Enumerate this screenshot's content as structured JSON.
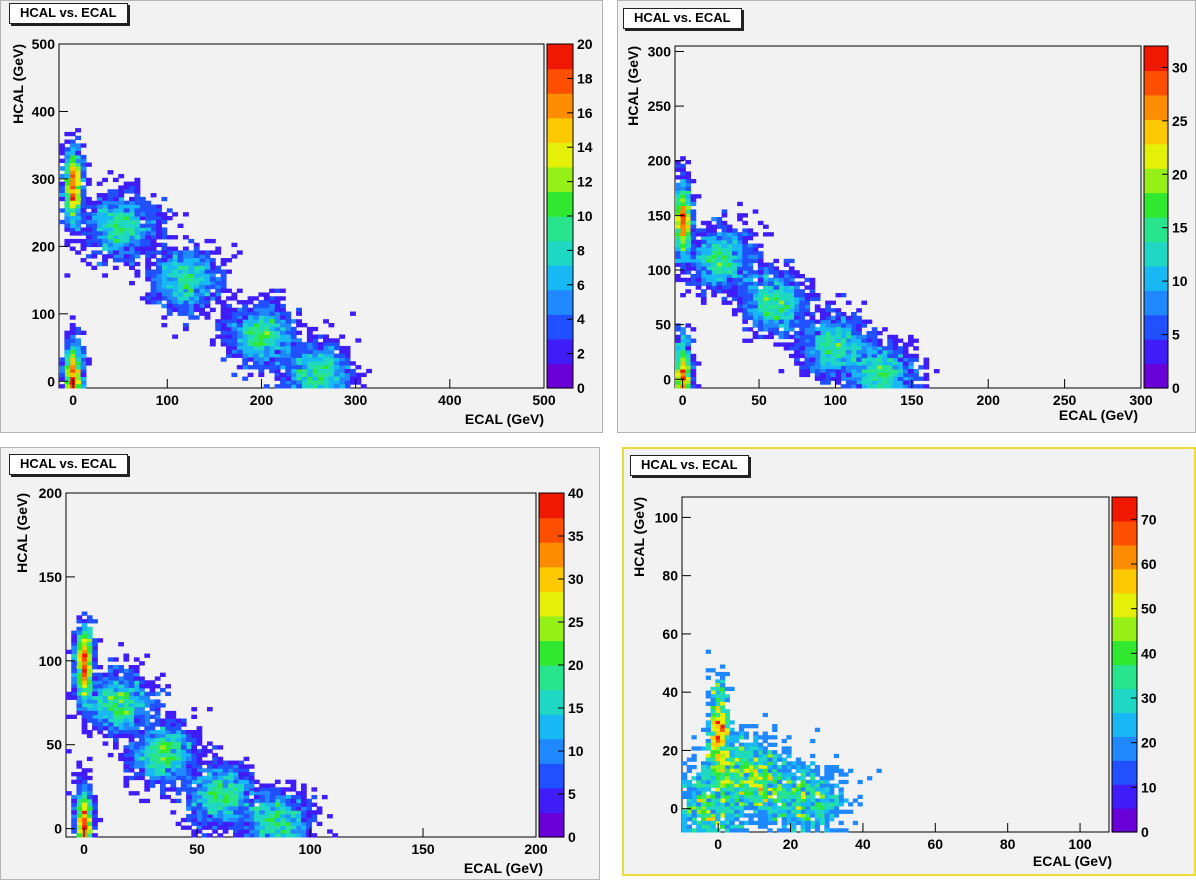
{
  "colors": {
    "pad_background": "#f2f2f2",
    "selected_pad_border": "#e8dc3c",
    "palette": [
      "#6a00d8",
      "#3f1cf8",
      "#2050ff",
      "#1f88ff",
      "#18b8f4",
      "#1fd8c4",
      "#28e48c",
      "#30e830",
      "#96f018",
      "#e4f008",
      "#fcc800",
      "#fc8c00",
      "#fc5000",
      "#f01800"
    ]
  },
  "chart_data": [
    {
      "type": "heatmap",
      "title": "HCAL vs. ECAL",
      "xlabel": "ECAL (GeV)",
      "ylabel": "HCAL (GeV)",
      "xlim": [
        -15,
        500
      ],
      "ylim": [
        -10,
        500
      ],
      "xticks": [
        "0",
        "100",
        "200",
        "300",
        "400",
        "500"
      ],
      "yticks": [
        "0",
        "100",
        "200",
        "300",
        "400",
        "500"
      ],
      "zlim": [
        0,
        20
      ],
      "zticks": [
        "0",
        "2",
        "4",
        "6",
        "8",
        "10",
        "12",
        "14",
        "16",
        "18",
        "20"
      ],
      "selected": false,
      "clusters": [
        {
          "x": 0,
          "y": 290,
          "z": 9
        },
        {
          "x": 0,
          "y": 5,
          "z": 5
        },
        {
          "x": 50,
          "y": 230,
          "z": 3
        },
        {
          "x": 120,
          "y": 150,
          "z": 2
        },
        {
          "x": 200,
          "y": 70,
          "z": 1
        },
        {
          "x": 260,
          "y": 10,
          "z": 1
        }
      ]
    },
    {
      "type": "heatmap",
      "title": "HCAL vs. ECAL",
      "xlabel": "ECAL (GeV)",
      "ylabel": "HCAL (GeV)",
      "xlim": [
        -5,
        300
      ],
      "ylim": [
        -8,
        305
      ],
      "xticks": [
        "0",
        "50",
        "100",
        "150",
        "200",
        "250",
        "300"
      ],
      "yticks": [
        "0",
        "50",
        "100",
        "150",
        "200",
        "250",
        "300"
      ],
      "zlim": [
        0,
        32
      ],
      "zticks": [
        "0",
        "5",
        "10",
        "15",
        "20",
        "25",
        "30"
      ],
      "selected": false,
      "clusters": [
        {
          "x": 0,
          "y": 145,
          "z": 12
        },
        {
          "x": 0,
          "y": 3,
          "z": 6
        },
        {
          "x": 25,
          "y": 110,
          "z": 5
        },
        {
          "x": 60,
          "y": 70,
          "z": 3
        },
        {
          "x": 100,
          "y": 30,
          "z": 2
        },
        {
          "x": 130,
          "y": 5,
          "z": 1
        }
      ]
    },
    {
      "type": "heatmap",
      "title": "HCAL vs. ECAL",
      "xlabel": "ECAL (GeV)",
      "ylabel": "HCAL (GeV)",
      "xlim": [
        -8,
        200
      ],
      "ylim": [
        -5,
        200
      ],
      "xticks": [
        "0",
        "50",
        "100",
        "150",
        "200"
      ],
      "yticks": [
        "0",
        "50",
        "100",
        "150",
        "200"
      ],
      "zlim": [
        0,
        40
      ],
      "zticks": [
        "0",
        "5",
        "10",
        "15",
        "20",
        "25",
        "30",
        "35",
        "40"
      ],
      "selected": false,
      "clusters": [
        {
          "x": 0,
          "y": 98,
          "z": 20
        },
        {
          "x": 0,
          "y": 2,
          "z": 10
        },
        {
          "x": 15,
          "y": 75,
          "z": 8
        },
        {
          "x": 35,
          "y": 45,
          "z": 5
        },
        {
          "x": 60,
          "y": 20,
          "z": 3
        },
        {
          "x": 85,
          "y": 3,
          "z": 2
        }
      ]
    },
    {
      "type": "heatmap",
      "title": "HCAL vs. ECAL",
      "xlabel": "ECAL (GeV)",
      "ylabel": "HCAL (GeV)",
      "xlim": [
        -10,
        108
      ],
      "ylim": [
        -8,
        107
      ],
      "xticks": [
        "0",
        "20",
        "40",
        "60",
        "80",
        "100"
      ],
      "yticks": [
        "0",
        "20",
        "40",
        "60",
        "80",
        "100"
      ],
      "zlim": [
        0,
        75
      ],
      "zticks": [
        "0",
        "10",
        "20",
        "30",
        "40",
        "50",
        "60",
        "70"
      ],
      "selected": true,
      "clusters": [
        {
          "x": 0,
          "y": 27,
          "z": 70
        },
        {
          "x": 5,
          "y": 15,
          "z": 35
        },
        {
          "x": 12,
          "y": 8,
          "z": 25
        },
        {
          "x": 25,
          "y": 2,
          "z": 15
        },
        {
          "x": -3,
          "y": 0,
          "z": 12
        }
      ]
    }
  ]
}
